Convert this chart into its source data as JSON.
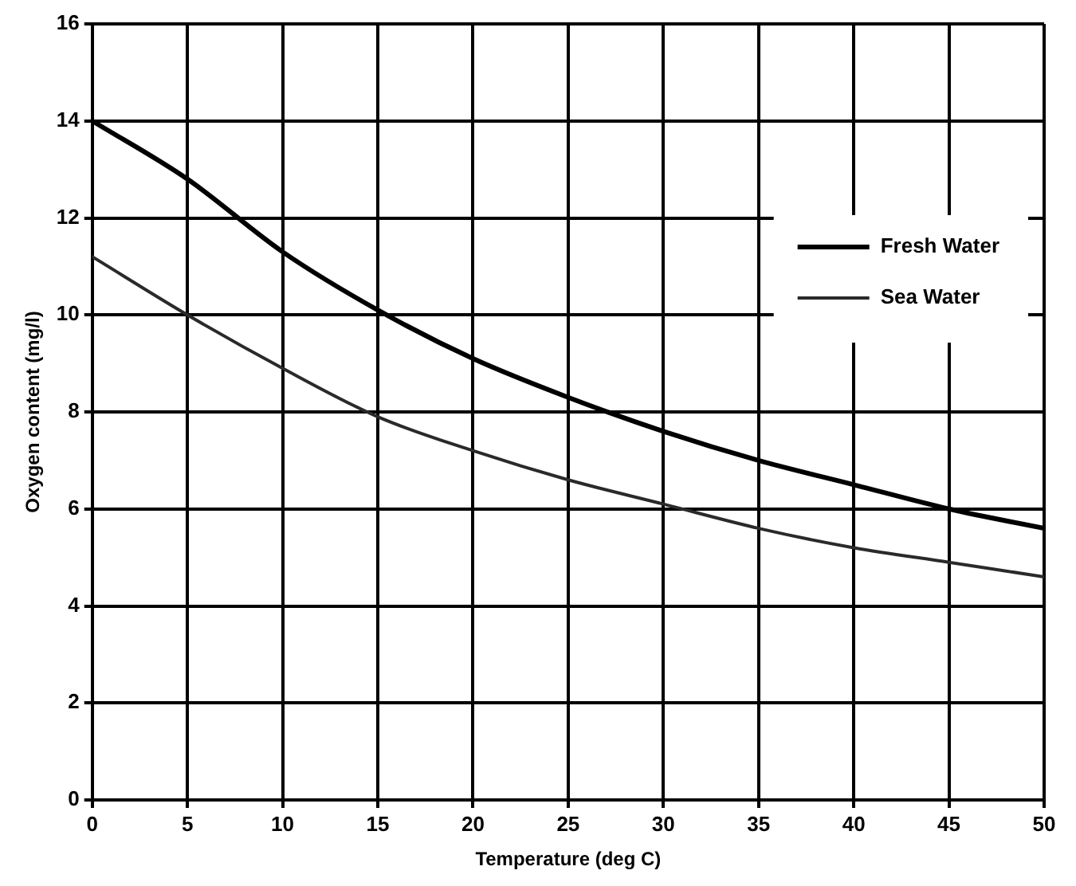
{
  "chart_data": {
    "type": "line",
    "xlabel": "Temperature (deg C)",
    "ylabel": "Oxygen content (mg/l)",
    "x": [
      0,
      5,
      10,
      15,
      20,
      25,
      30,
      35,
      40,
      45,
      50
    ],
    "series": [
      {
        "name": "Fresh Water",
        "color": "#000000",
        "values": [
          14.0,
          12.8,
          11.3,
          10.1,
          9.1,
          8.3,
          7.6,
          7.0,
          6.5,
          6.0,
          5.6
        ]
      },
      {
        "name": "Sea Water",
        "color": "#2a2a2a",
        "values": [
          11.2,
          10.0,
          8.9,
          7.9,
          7.2,
          6.6,
          6.1,
          5.6,
          5.2,
          4.9,
          4.6
        ]
      }
    ],
    "xlim": [
      0,
      50
    ],
    "xticks": [
      0,
      5,
      10,
      15,
      20,
      25,
      30,
      35,
      40,
      45,
      50
    ],
    "ylim": [
      0,
      16
    ],
    "yticks": [
      0,
      2,
      4,
      6,
      8,
      10,
      12,
      14,
      16
    ],
    "grid": true,
    "legend": "top right",
    "marker": "none",
    "line_style": "solid"
  }
}
